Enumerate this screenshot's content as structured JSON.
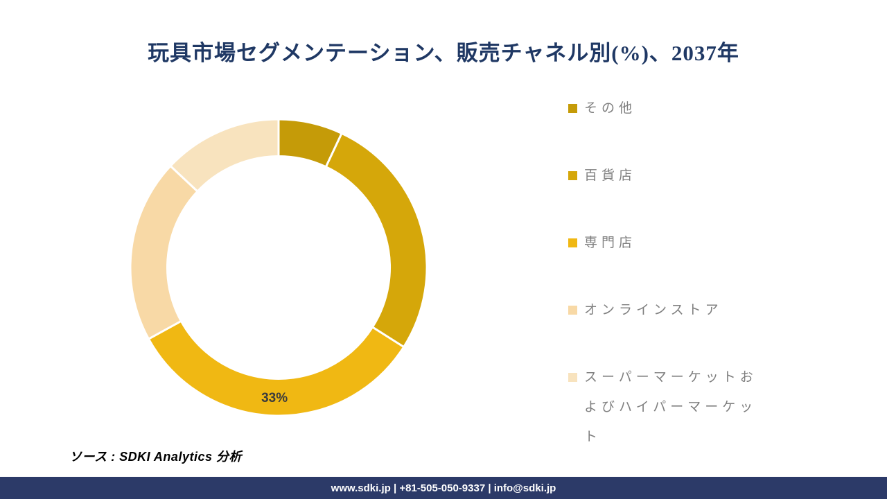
{
  "title": "玩具市場セグメンテーション、販売チャネル別(%)、2037年",
  "chart_data": {
    "type": "pie",
    "subtype": "donut",
    "title": "玩具市場セグメンテーション、販売チャネル別(%)、2037年",
    "legend_position": "right",
    "start_angle_deg": 0,
    "direction": "clockwise",
    "inner_radius_ratio": 0.75,
    "total": 100,
    "segments": [
      {
        "label": "その他",
        "value": 7,
        "color": "#C59B08",
        "data_label": ""
      },
      {
        "label": "百貨店",
        "value": 27,
        "color": "#D5A70A",
        "data_label": ""
      },
      {
        "label": "専門店",
        "value": 33,
        "color": "#F0B813",
        "data_label": "33%"
      },
      {
        "label": "オンラインストア",
        "value": 20,
        "color": "#F8D9A6",
        "data_label": ""
      },
      {
        "label": "スーパーマーケットおよびハイパーマーケット",
        "value": 13,
        "color": "#F8E3BE",
        "data_label": ""
      }
    ]
  },
  "source": {
    "text": "ソース : SDKI Analytics 分析"
  },
  "footer": {
    "text": "www.sdki.jp | +81-505-050-9337 | info@sdki.jp",
    "background": "#2C3A68"
  },
  "colors": {
    "title": "#1F3864",
    "legend_text": "#7F7F7F",
    "data_label": "#3C3C3C",
    "segment_divider": "#FFFFFF"
  }
}
